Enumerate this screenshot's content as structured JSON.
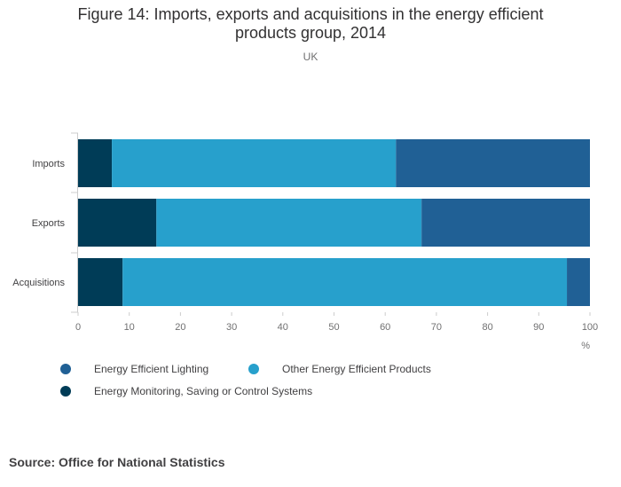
{
  "title_lines": [
    "Figure 14: Imports, exports and acquisitions in the energy efficient",
    "products group, 2014"
  ],
  "subtitle": "UK",
  "source": "Source: Office for National Statistics",
  "colors": {
    "lighting": "#206095",
    "other": "#27a0cc",
    "monitoring": "#003c57",
    "axis": "#cccccc",
    "tick_text": "#707071"
  },
  "chart_data": {
    "type": "bar",
    "orientation": "horizontal",
    "stacked": true,
    "title": "Figure 14: Imports, exports and acquisitions in the energy efficient products group, 2014",
    "subtitle": "UK",
    "categories": [
      "Imports",
      "Exports",
      "Acquisitions"
    ],
    "series": [
      {
        "name": "Energy Monitoring, Saving or Control Systems",
        "key": "monitoring",
        "values": [
          6.6,
          15.3,
          8.7
        ]
      },
      {
        "name": "Other Energy Efficient Products",
        "key": "other",
        "values": [
          55.5,
          51.8,
          86.8
        ]
      },
      {
        "name": "Energy Efficient Lighting",
        "key": "lighting",
        "values": [
          37.9,
          32.9,
          4.5
        ]
      }
    ],
    "xlim": [
      0,
      100
    ],
    "xticks": [
      "0",
      "10",
      "20",
      "30",
      "40",
      "50",
      "60",
      "70",
      "80",
      "90",
      "100"
    ],
    "xlabel": "%",
    "ylabel": "",
    "grid": false,
    "legend_position": "bottom-left",
    "legend": [
      {
        "label": "Energy Efficient Lighting",
        "key": "lighting"
      },
      {
        "label": "Other Energy Efficient Products",
        "key": "other"
      },
      {
        "label": "Energy Monitoring, Saving or Control Systems",
        "key": "monitoring"
      }
    ]
  }
}
